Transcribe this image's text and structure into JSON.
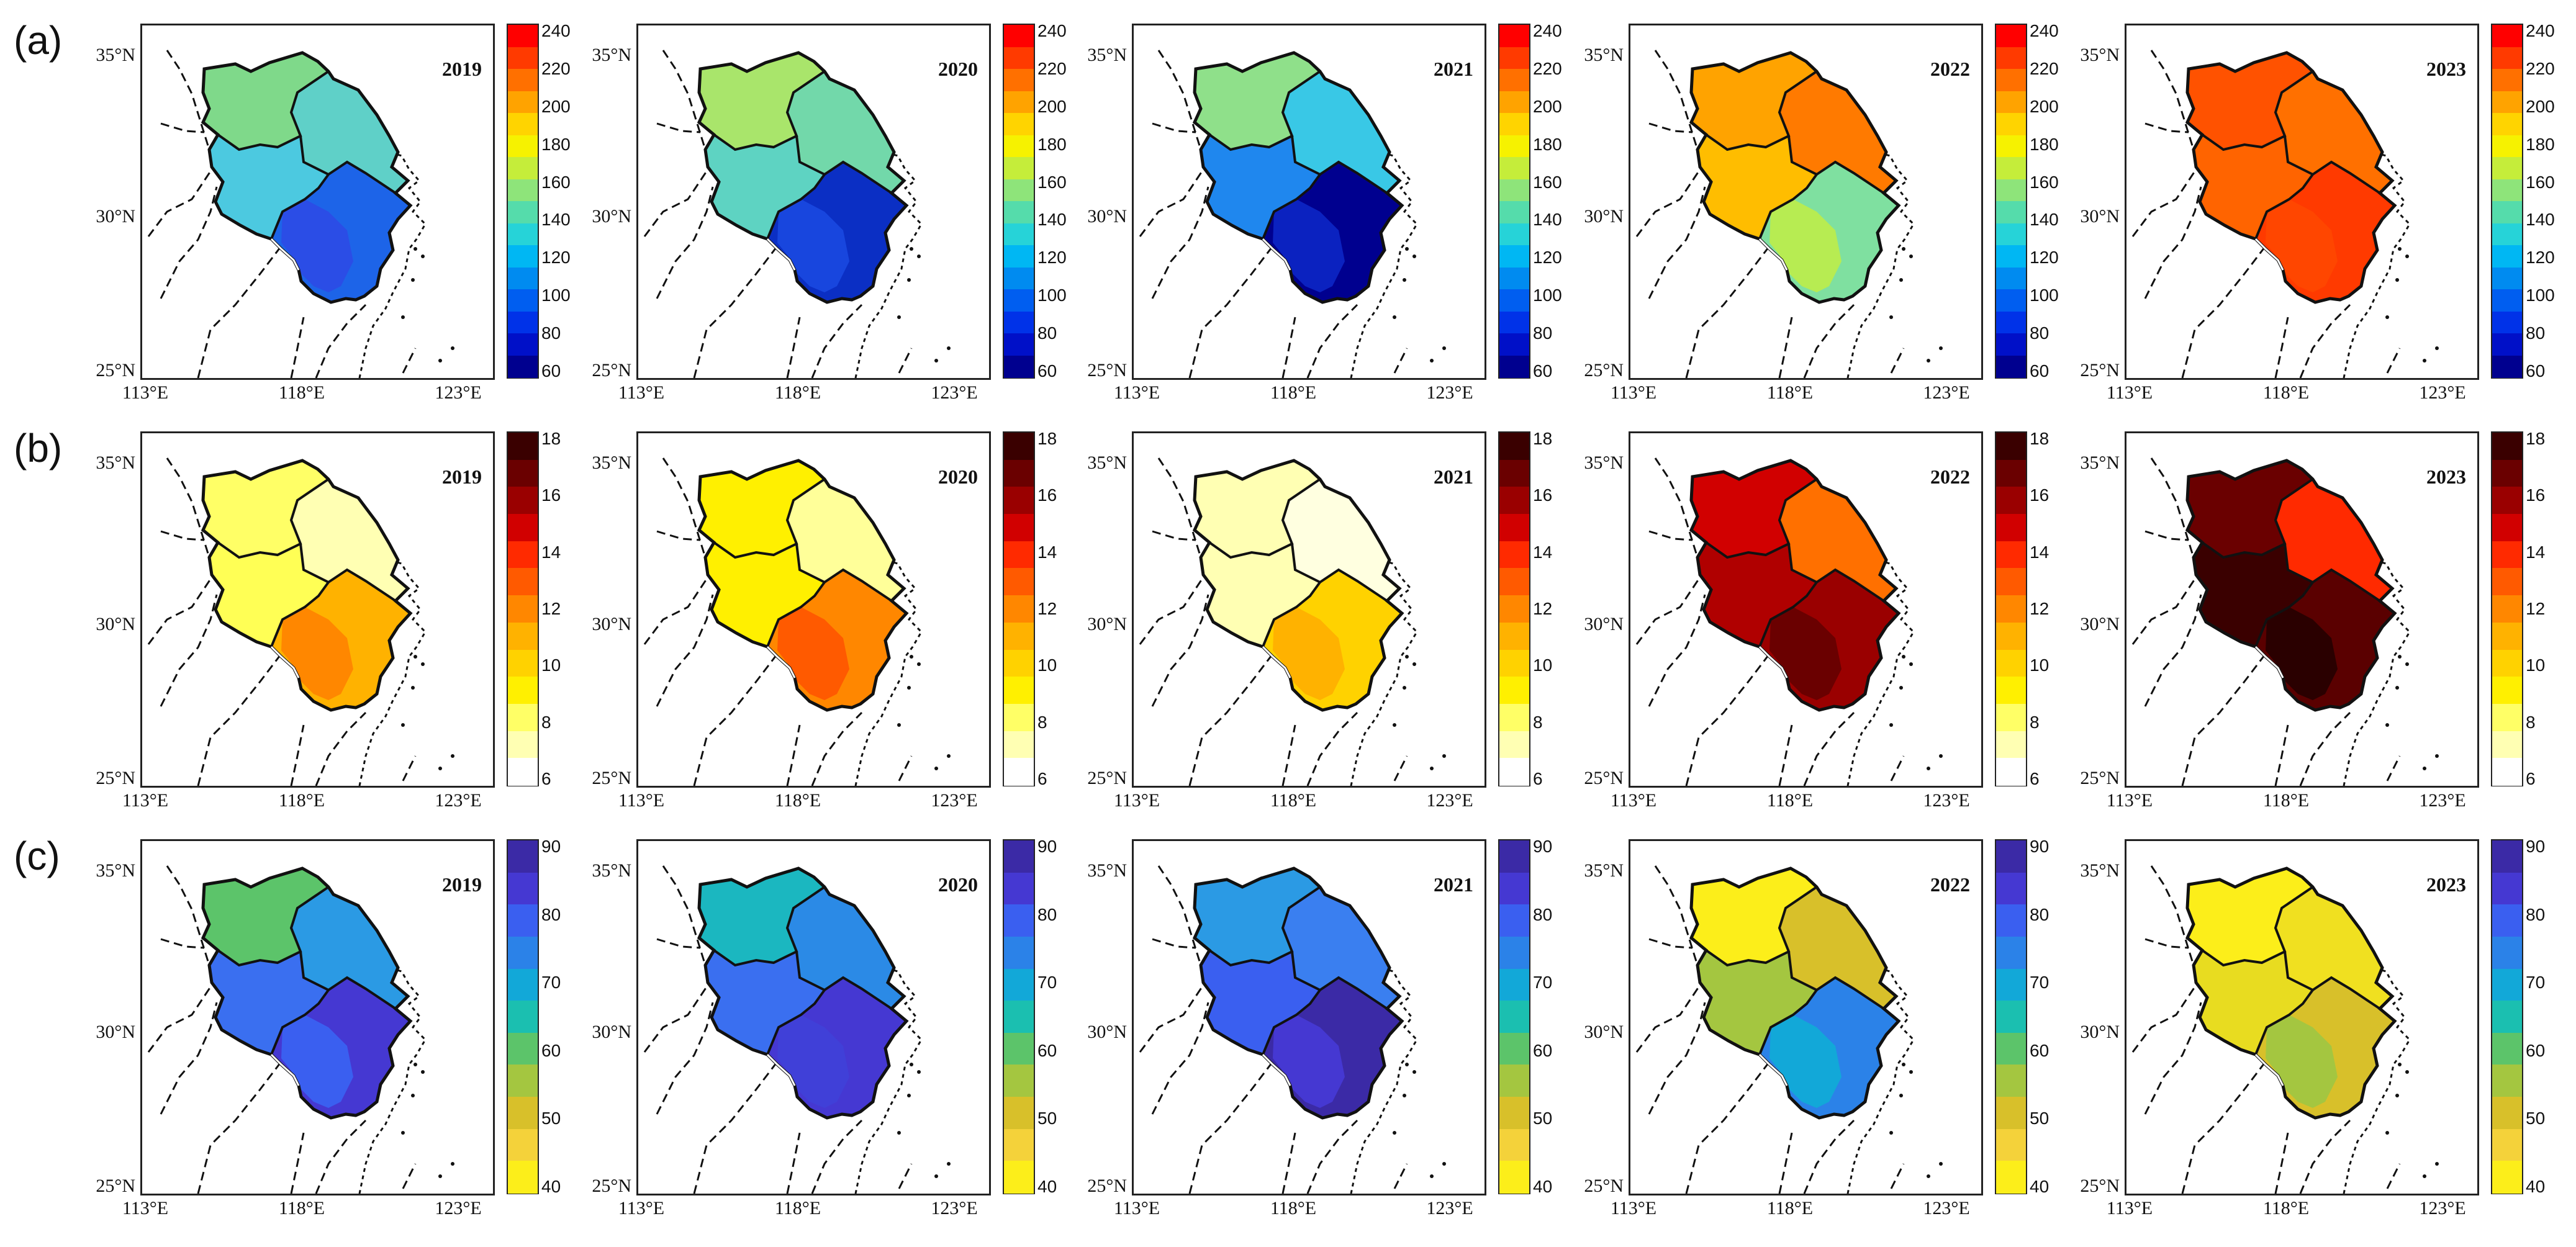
{
  "figure": {
    "rows": [
      {
        "label": "(a)",
        "colorbar": {
          "ticks": [
            "240",
            "220",
            "200",
            "180",
            "160",
            "140",
            "120",
            "100",
            "80",
            "60"
          ],
          "colors": [
            "#ff0000",
            "#ff3a00",
            "#ff7000",
            "#ffa300",
            "#ffd400",
            "#f6f200",
            "#c5ed3a",
            "#8ee47a",
            "#55dcab",
            "#26d3d8",
            "#00b7f3",
            "#008bf0",
            "#005ef0",
            "#0032e8",
            "#0010c8",
            "#00008f"
          ]
        },
        "panels": [
          {
            "year": "2019",
            "colors": {
              "north": "#7fd98a",
              "northeast": "#5fd0c8",
              "southwest": "#4cc9e0",
              "south": "#1d64e8",
              "sw_low": "#2b4de6"
            }
          },
          {
            "year": "2020",
            "colors": {
              "north": "#a9e56b",
              "northeast": "#72d8aa",
              "southwest": "#5ed3c2",
              "south": "#0b2fc4",
              "sw_low": "#1846de"
            }
          },
          {
            "year": "2021",
            "colors": {
              "north": "#8fe08a",
              "northeast": "#39c8e6",
              "southwest": "#1f87ee",
              "south": "#00008f",
              "sw_low": "#0b22c0"
            }
          },
          {
            "year": "2022",
            "colors": {
              "north": "#ffa300",
              "northeast": "#ff7a00",
              "southwest": "#ffbd00",
              "south": "#7fe0a0",
              "sw_low": "#b7ec52"
            }
          },
          {
            "year": "2023",
            "colors": {
              "north": "#ff5200",
              "northeast": "#ff7000",
              "southwest": "#ff6400",
              "south": "#ff3a00",
              "sw_low": "#ff4600"
            }
          }
        ]
      },
      {
        "label": "(b)",
        "colorbar": {
          "ticks": [
            "18",
            "16",
            "14",
            "12",
            "10",
            "8",
            "6"
          ],
          "colors": [
            "#3a0000",
            "#6a0000",
            "#9a0000",
            "#d10000",
            "#ff2a00",
            "#ff5a00",
            "#ff8700",
            "#ffb200",
            "#ffd200",
            "#fff000",
            "#ffff66",
            "#ffffb3",
            "#ffffff"
          ]
        },
        "panels": [
          {
            "year": "2019",
            "colors": {
              "north": "#ffff66",
              "northeast": "#ffffb3",
              "southwest": "#ffff55",
              "south": "#ffb200",
              "sw_low": "#ff8700"
            }
          },
          {
            "year": "2020",
            "colors": {
              "north": "#fff000",
              "northeast": "#ffff99",
              "southwest": "#fff000",
              "south": "#ff8700",
              "sw_low": "#ff5a00"
            }
          },
          {
            "year": "2021",
            "colors": {
              "north": "#ffffb3",
              "northeast": "#ffffe0",
              "southwest": "#ffffb3",
              "south": "#ffd200",
              "sw_low": "#ffb200"
            }
          },
          {
            "year": "2022",
            "colors": {
              "north": "#d10000",
              "northeast": "#ff7000",
              "southwest": "#b00000",
              "south": "#9a0000",
              "sw_low": "#6a0000"
            }
          },
          {
            "year": "2023",
            "colors": {
              "north": "#6a0000",
              "northeast": "#ff2a00",
              "southwest": "#3a0000",
              "south": "#5a0000",
              "sw_low": "#2a0000"
            }
          }
        ]
      },
      {
        "label": "(c)",
        "colorbar": {
          "ticks": [
            "90",
            "80",
            "70",
            "60",
            "50",
            "40"
          ],
          "colors": [
            "#3b2aa6",
            "#4538d2",
            "#3a5ff0",
            "#2b82e8",
            "#12a8d8",
            "#1bbfb0",
            "#5cc46a",
            "#a4c640",
            "#d8c02a",
            "#f4d23a",
            "#fcee1a"
          ]
        },
        "panels": [
          {
            "year": "2019",
            "colors": {
              "north": "#5cc46a",
              "northeast": "#2b9ae4",
              "southwest": "#3a6ff0",
              "south": "#4538d2",
              "sw_low": "#3a5ff0"
            }
          },
          {
            "year": "2020",
            "colors": {
              "north": "#1bb7c0",
              "northeast": "#2b8ae6",
              "southwest": "#3a6ff0",
              "south": "#4538d2",
              "sw_low": "#4040d8"
            }
          },
          {
            "year": "2021",
            "colors": {
              "north": "#2b9ae4",
              "northeast": "#3a7ff0",
              "southwest": "#3a5ff0",
              "south": "#3b2aa6",
              "sw_low": "#4538d2"
            }
          },
          {
            "year": "2022",
            "colors": {
              "north": "#fcee1a",
              "northeast": "#d8c02a",
              "southwest": "#a4c640",
              "south": "#2b82e8",
              "sw_low": "#12a8d8"
            }
          },
          {
            "year": "2023",
            "colors": {
              "north": "#fcee1a",
              "northeast": "#f0e020",
              "southwest": "#e8dc20",
              "south": "#d8c02a",
              "sw_low": "#a4c640"
            }
          }
        ]
      }
    ],
    "axes": {
      "lat_ticks": [
        "35°N",
        "30°N",
        "25°N"
      ],
      "lon_ticks": [
        "113°E",
        "118°E",
        "123°E"
      ]
    }
  }
}
